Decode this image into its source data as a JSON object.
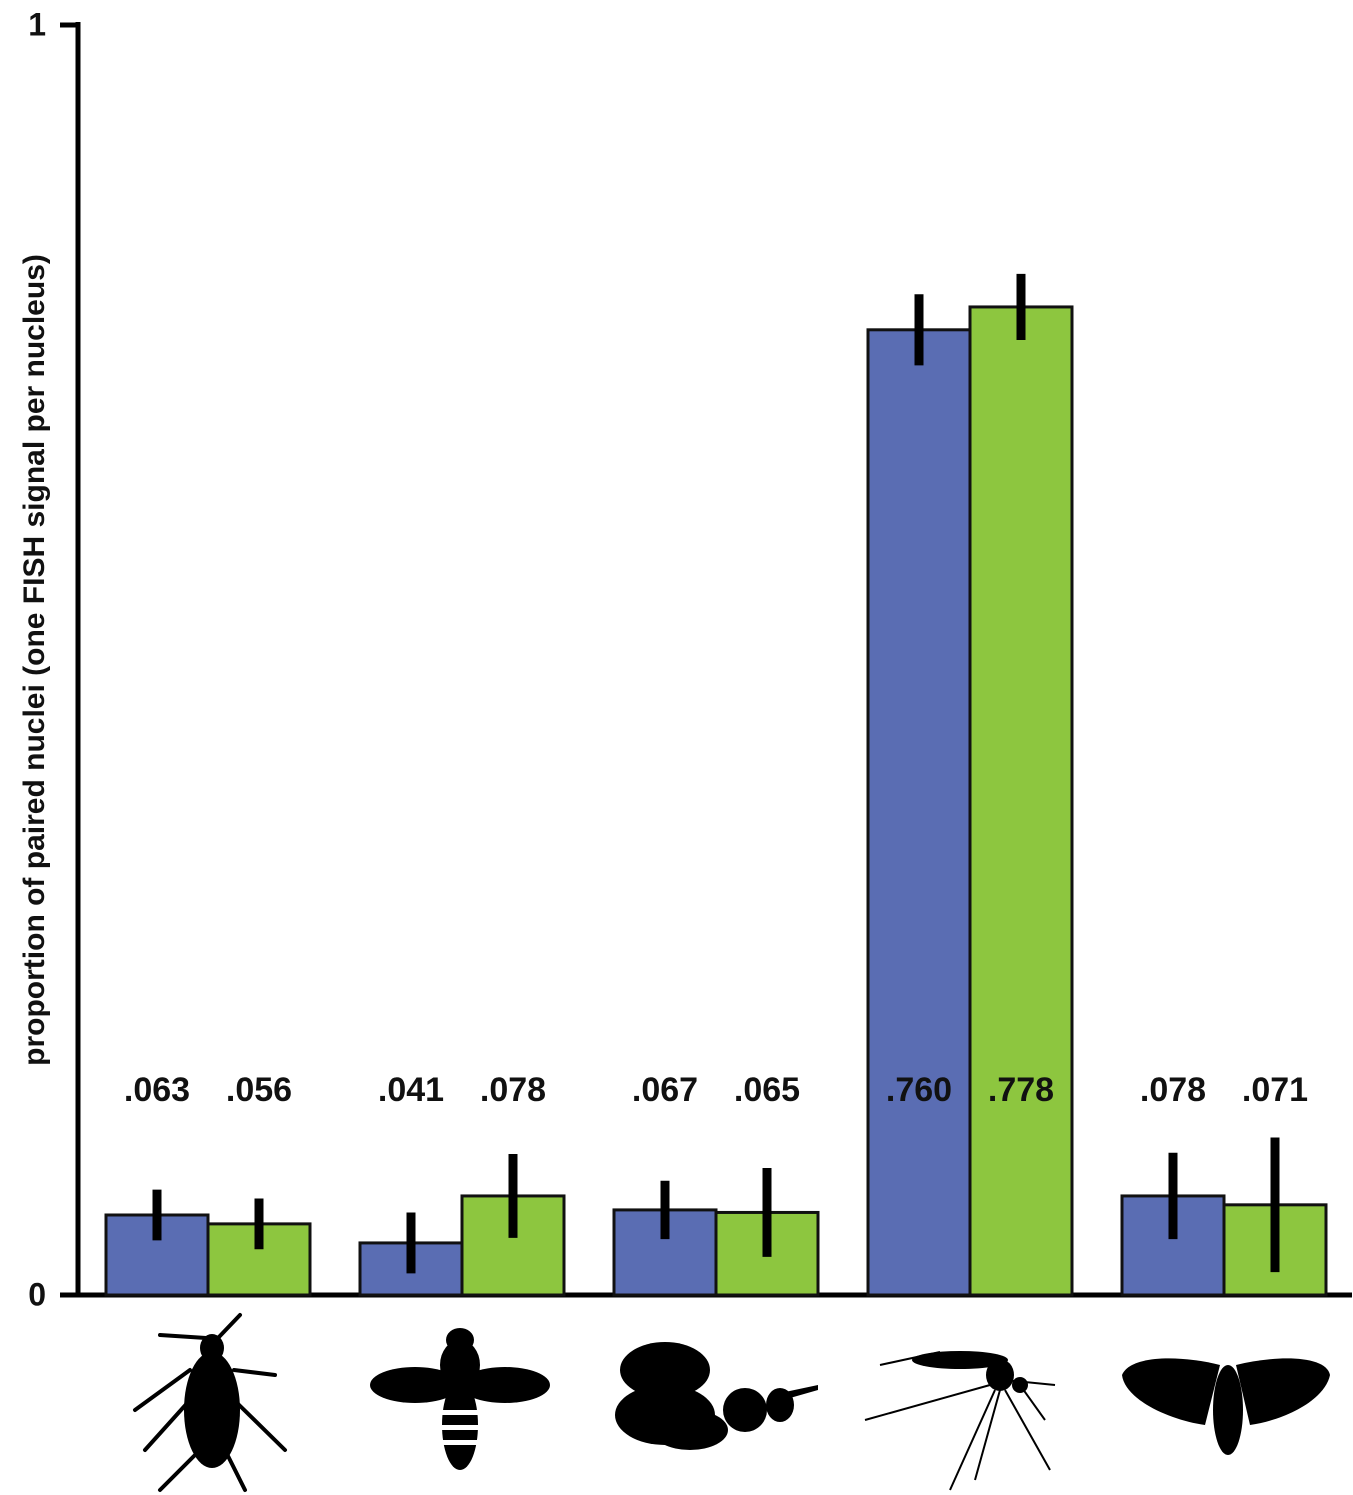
{
  "chart_data": {
    "type": "bar",
    "y_label": "proportion of paired nuclei (one FISH signal per nucleus)",
    "categories": [
      null,
      null,
      null,
      null,
      null
    ],
    "series": [
      {
        "color": "#5a6db3",
        "values": [
          0.063,
          0.041,
          0.067,
          0.76,
          0.078
        ],
        "value_labels": [
          ".063",
          ".041",
          ".067",
          ".760",
          ".078"
        ],
        "errors": [
          0.02,
          0.024,
          0.023,
          0.028,
          0.034
        ]
      },
      {
        "color": "#8dc63f",
        "values": [
          0.056,
          0.078,
          0.065,
          0.778,
          0.071
        ],
        "value_labels": [
          ".056",
          ".078",
          ".065",
          ".778",
          ".071"
        ],
        "errors": [
          0.02,
          0.033,
          0.035,
          0.026,
          0.053
        ]
      }
    ],
    "ylim": [
      0,
      1
    ],
    "yticks": [
      0,
      1
    ]
  }
}
